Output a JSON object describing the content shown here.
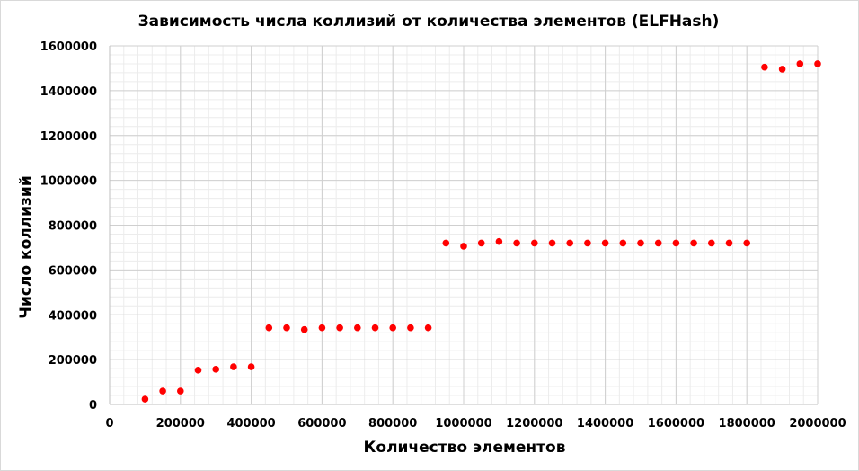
{
  "chart_data": {
    "type": "scatter",
    "title": "Зависимость числа коллизий от количества элементов (ELFHash)",
    "xlabel": "Количество элементов",
    "ylabel": "Число коллизий",
    "xlim": [
      0,
      2000000
    ],
    "ylim": [
      0,
      1600000
    ],
    "x_ticks": [
      0,
      200000,
      400000,
      600000,
      800000,
      1000000,
      1200000,
      1400000,
      1600000,
      1800000,
      2000000
    ],
    "y_ticks": [
      0,
      200000,
      400000,
      600000,
      800000,
      1000000,
      1200000,
      1400000,
      1600000
    ],
    "grid": true,
    "legend": "none",
    "marker_color": "#ff0000",
    "points": [
      {
        "x": 100000,
        "y": 24000
      },
      {
        "x": 150000,
        "y": 60000
      },
      {
        "x": 200000,
        "y": 60000
      },
      {
        "x": 250000,
        "y": 153000
      },
      {
        "x": 300000,
        "y": 157000
      },
      {
        "x": 350000,
        "y": 168000
      },
      {
        "x": 400000,
        "y": 168000
      },
      {
        "x": 450000,
        "y": 342000
      },
      {
        "x": 500000,
        "y": 342000
      },
      {
        "x": 550000,
        "y": 334000
      },
      {
        "x": 600000,
        "y": 342000
      },
      {
        "x": 650000,
        "y": 342000
      },
      {
        "x": 700000,
        "y": 342000
      },
      {
        "x": 750000,
        "y": 342000
      },
      {
        "x": 800000,
        "y": 342000
      },
      {
        "x": 850000,
        "y": 342000
      },
      {
        "x": 900000,
        "y": 342000
      },
      {
        "x": 950000,
        "y": 720000
      },
      {
        "x": 1000000,
        "y": 706000
      },
      {
        "x": 1050000,
        "y": 720000
      },
      {
        "x": 1100000,
        "y": 727000
      },
      {
        "x": 1150000,
        "y": 720000
      },
      {
        "x": 1200000,
        "y": 720000
      },
      {
        "x": 1250000,
        "y": 720000
      },
      {
        "x": 1300000,
        "y": 720000
      },
      {
        "x": 1350000,
        "y": 720000
      },
      {
        "x": 1400000,
        "y": 720000
      },
      {
        "x": 1450000,
        "y": 720000
      },
      {
        "x": 1500000,
        "y": 720000
      },
      {
        "x": 1550000,
        "y": 720000
      },
      {
        "x": 1600000,
        "y": 720000
      },
      {
        "x": 1650000,
        "y": 720000
      },
      {
        "x": 1700000,
        "y": 720000
      },
      {
        "x": 1750000,
        "y": 720000
      },
      {
        "x": 1800000,
        "y": 720000
      },
      {
        "x": 1850000,
        "y": 1505000
      },
      {
        "x": 1900000,
        "y": 1496000
      },
      {
        "x": 1950000,
        "y": 1520000
      },
      {
        "x": 2000000,
        "y": 1520000
      }
    ]
  }
}
